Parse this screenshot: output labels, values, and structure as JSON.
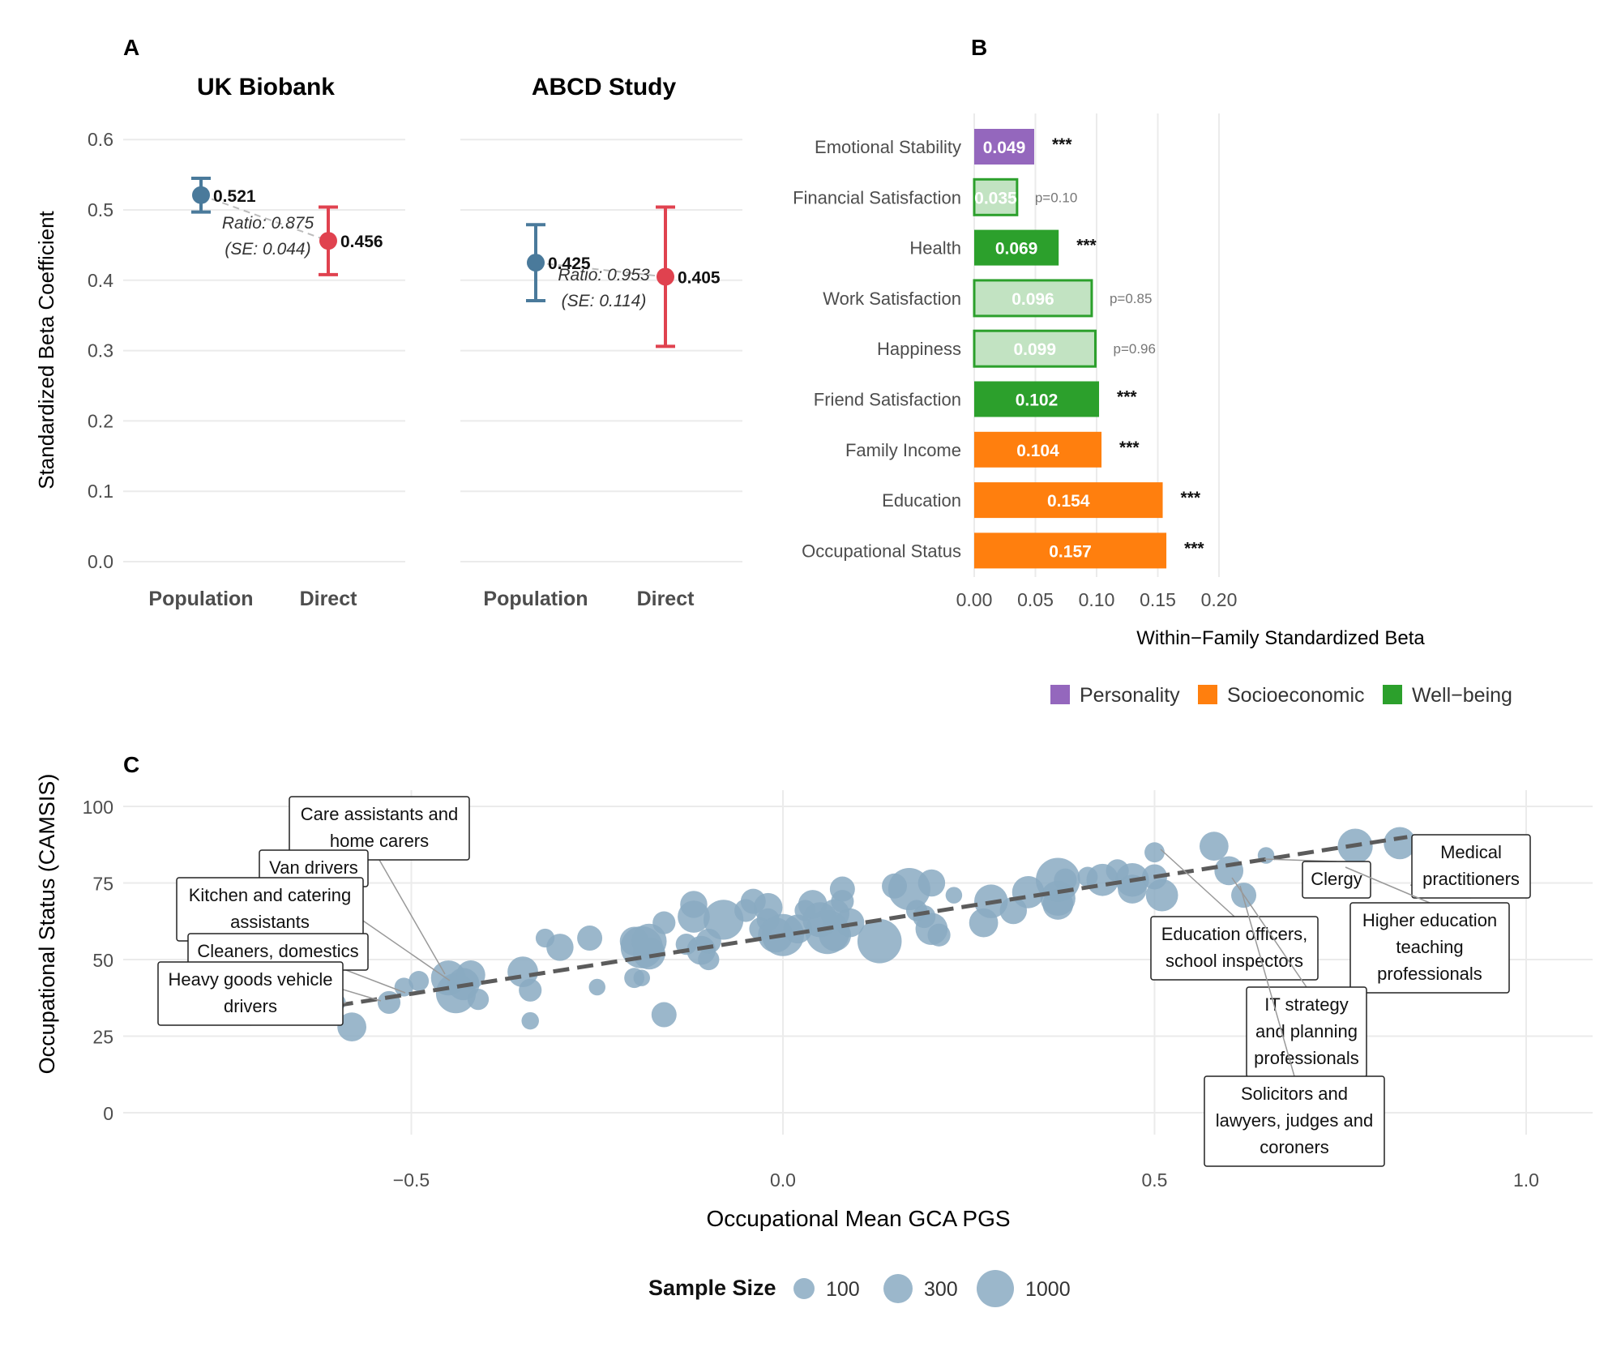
{
  "chart_data": [
    {
      "panel": "A",
      "type": "scatter",
      "ylabel": "Standardized Beta Coefficient",
      "ylim": [
        0,
        0.6
      ],
      "yticks": [
        "0.0",
        "0.1",
        "0.2",
        "0.3",
        "0.4",
        "0.5",
        "0.6"
      ],
      "categories": [
        "Population",
        "Direct"
      ],
      "subplots": [
        {
          "title": "UK Biobank",
          "population": {
            "value": 0.521,
            "ci": [
              0.497,
              0.545
            ],
            "label": "0.521",
            "color": "#4a7a9b"
          },
          "direct": {
            "value": 0.456,
            "ci": [
              0.408,
              0.504
            ],
            "label": "0.456",
            "color": "#e0424f"
          },
          "ratio_text": "Ratio: 0.875",
          "se_text": "(SE: 0.044)"
        },
        {
          "title": "ABCD Study",
          "population": {
            "value": 0.425,
            "ci": [
              0.371,
              0.479
            ],
            "label": "0.425",
            "color": "#4a7a9b"
          },
          "direct": {
            "value": 0.405,
            "ci": [
              0.306,
              0.504
            ],
            "label": "0.405",
            "color": "#e0424f"
          },
          "ratio_text": "Ratio: 0.953",
          "se_text": "(SE: 0.114)"
        }
      ]
    },
    {
      "panel": "B",
      "type": "bar",
      "orientation": "horizontal",
      "xlabel": "Within−Family Standardized Beta",
      "xlim": [
        0,
        0.2
      ],
      "xticks": [
        "0.00",
        "0.05",
        "0.10",
        "0.15",
        "0.20"
      ],
      "bars": [
        {
          "label": "Emotional Stability",
          "value": 0.049,
          "text": "0.049",
          "group": "Personality",
          "significant": true,
          "annotation": "***"
        },
        {
          "label": "Financial Satisfaction",
          "value": 0.035,
          "text": "0.035",
          "group": "Well-being",
          "significant": false,
          "annotation": "p=0.10"
        },
        {
          "label": "Health",
          "value": 0.069,
          "text": "0.069",
          "group": "Well-being",
          "significant": true,
          "annotation": "***"
        },
        {
          "label": "Work Satisfaction",
          "value": 0.096,
          "text": "0.096",
          "group": "Well-being",
          "significant": false,
          "annotation": "p=0.85"
        },
        {
          "label": "Happiness",
          "value": 0.099,
          "text": "0.099",
          "group": "Well-being",
          "significant": false,
          "annotation": "p=0.96"
        },
        {
          "label": "Friend Satisfaction",
          "value": 0.102,
          "text": "0.102",
          "group": "Well-being",
          "significant": true,
          "annotation": "***"
        },
        {
          "label": "Family Income",
          "value": 0.104,
          "text": "0.104",
          "group": "Socioeconomic",
          "significant": true,
          "annotation": "***"
        },
        {
          "label": "Education",
          "value": 0.154,
          "text": "0.154",
          "group": "Socioeconomic",
          "significant": true,
          "annotation": "***"
        },
        {
          "label": "Occupational Status",
          "value": 0.157,
          "text": "0.157",
          "group": "Socioeconomic",
          "significant": true,
          "annotation": "***"
        }
      ],
      "legend": [
        {
          "name": "Personality",
          "color": "#9467bd"
        },
        {
          "name": "Socioeconomic",
          "color": "#ff7f0e"
        },
        {
          "name": "Well−being",
          "color": "#2ca02c"
        }
      ]
    },
    {
      "panel": "C",
      "type": "scatter",
      "xlabel": "Occupational Mean GCA PGS",
      "ylabel": "Occupational Status (CAMSIS)",
      "xlim": [
        -0.9,
        1.1
      ],
      "ylim": [
        -10,
        105
      ],
      "xticks": [
        "−0.5",
        "0.0",
        "0.5",
        "1.0"
      ],
      "yticks": [
        "0",
        "25",
        "50",
        "75",
        "100"
      ],
      "trend_line": {
        "x": [
          -0.6,
          0.84
        ],
        "y": [
          35,
          90
        ]
      },
      "points": [
        {
          "x": -0.58,
          "y": 28,
          "n": 300
        },
        {
          "x": -0.6,
          "y": 36,
          "n": 60
        },
        {
          "x": -0.53,
          "y": 36,
          "n": 150
        },
        {
          "x": -0.51,
          "y": 41,
          "n": 80
        },
        {
          "x": -0.49,
          "y": 43,
          "n": 100
        },
        {
          "x": -0.45,
          "y": 44,
          "n": 500
        },
        {
          "x": -0.44,
          "y": 39,
          "n": 700
        },
        {
          "x": -0.43,
          "y": 42,
          "n": 400
        },
        {
          "x": -0.42,
          "y": 45,
          "n": 300
        },
        {
          "x": -0.41,
          "y": 37,
          "n": 120
        },
        {
          "x": -0.35,
          "y": 46,
          "n": 350
        },
        {
          "x": -0.34,
          "y": 40,
          "n": 150
        },
        {
          "x": -0.34,
          "y": 30,
          "n": 60
        },
        {
          "x": -0.32,
          "y": 57,
          "n": 80
        },
        {
          "x": -0.3,
          "y": 54,
          "n": 250
        },
        {
          "x": -0.26,
          "y": 57,
          "n": 200
        },
        {
          "x": -0.25,
          "y": 41,
          "n": 50
        },
        {
          "x": -0.2,
          "y": 44,
          "n": 100
        },
        {
          "x": -0.19,
          "y": 44,
          "n": 50
        },
        {
          "x": -0.2,
          "y": 56,
          "n": 300
        },
        {
          "x": -0.19,
          "y": 54,
          "n": 800
        },
        {
          "x": -0.18,
          "y": 52,
          "n": 400
        },
        {
          "x": -0.18,
          "y": 56,
          "n": 500
        },
        {
          "x": -0.16,
          "y": 62,
          "n": 150
        },
        {
          "x": -0.16,
          "y": 32,
          "n": 200
        },
        {
          "x": -0.13,
          "y": 55,
          "n": 120
        },
        {
          "x": -0.12,
          "y": 68,
          "n": 250
        },
        {
          "x": -0.12,
          "y": 64,
          "n": 400
        },
        {
          "x": -0.11,
          "y": 53,
          "n": 300
        },
        {
          "x": -0.1,
          "y": 56,
          "n": 200
        },
        {
          "x": -0.1,
          "y": 50,
          "n": 120
        },
        {
          "x": -0.08,
          "y": 63,
          "n": 700
        },
        {
          "x": -0.05,
          "y": 66,
          "n": 150
        },
        {
          "x": -0.04,
          "y": 69,
          "n": 200
        },
        {
          "x": -0.03,
          "y": 60,
          "n": 150
        },
        {
          "x": -0.02,
          "y": 67,
          "n": 300
        },
        {
          "x": -0.02,
          "y": 63,
          "n": 150
        },
        {
          "x": -0.01,
          "y": 58,
          "n": 500
        },
        {
          "x": 0.0,
          "y": 58,
          "n": 800
        },
        {
          "x": 0.02,
          "y": 60,
          "n": 300
        },
        {
          "x": 0.03,
          "y": 66,
          "n": 120
        },
        {
          "x": 0.04,
          "y": 68,
          "n": 300
        },
        {
          "x": 0.05,
          "y": 63,
          "n": 500
        },
        {
          "x": 0.06,
          "y": 59,
          "n": 900
        },
        {
          "x": 0.07,
          "y": 58,
          "n": 400
        },
        {
          "x": 0.07,
          "y": 65,
          "n": 300
        },
        {
          "x": 0.08,
          "y": 73,
          "n": 200
        },
        {
          "x": 0.08,
          "y": 69,
          "n": 150
        },
        {
          "x": 0.09,
          "y": 62,
          "n": 300
        },
        {
          "x": 0.13,
          "y": 56,
          "n": 900
        },
        {
          "x": 0.15,
          "y": 74,
          "n": 200
        },
        {
          "x": 0.17,
          "y": 73,
          "n": 800
        },
        {
          "x": 0.18,
          "y": 66,
          "n": 120
        },
        {
          "x": 0.19,
          "y": 64,
          "n": 150
        },
        {
          "x": 0.2,
          "y": 75,
          "n": 250
        },
        {
          "x": 0.2,
          "y": 60,
          "n": 400
        },
        {
          "x": 0.21,
          "y": 58,
          "n": 150
        },
        {
          "x": 0.23,
          "y": 71,
          "n": 50
        },
        {
          "x": 0.27,
          "y": 62,
          "n": 300
        },
        {
          "x": 0.28,
          "y": 69,
          "n": 450
        },
        {
          "x": 0.31,
          "y": 66,
          "n": 250
        },
        {
          "x": 0.33,
          "y": 72,
          "n": 400
        },
        {
          "x": 0.37,
          "y": 76,
          "n": 900
        },
        {
          "x": 0.37,
          "y": 70,
          "n": 500
        },
        {
          "x": 0.37,
          "y": 68,
          "n": 350
        },
        {
          "x": 0.38,
          "y": 76,
          "n": 150
        },
        {
          "x": 0.41,
          "y": 77,
          "n": 100
        },
        {
          "x": 0.43,
          "y": 76,
          "n": 400
        },
        {
          "x": 0.45,
          "y": 79,
          "n": 150
        },
        {
          "x": 0.47,
          "y": 76,
          "n": 450
        },
        {
          "x": 0.47,
          "y": 73,
          "n": 300
        },
        {
          "x": 0.5,
          "y": 85,
          "n": 100
        },
        {
          "x": 0.5,
          "y": 77,
          "n": 200
        },
        {
          "x": 0.51,
          "y": 71,
          "n": 400
        },
        {
          "x": 0.58,
          "y": 87,
          "n": 300
        },
        {
          "x": 0.6,
          "y": 79,
          "n": 300
        },
        {
          "x": 0.62,
          "y": 71,
          "n": 200
        },
        {
          "x": 0.65,
          "y": 84,
          "n": 50
        },
        {
          "x": 0.77,
          "y": 87,
          "n": 500
        },
        {
          "x": 0.83,
          "y": 88,
          "n": 400
        }
      ],
      "annotations": [
        {
          "text": [
            "Care assistants and",
            "home carers"
          ]
        },
        {
          "text": [
            "Van drivers"
          ]
        },
        {
          "text": [
            "Kitchen and catering",
            "assistants"
          ]
        },
        {
          "text": [
            "Cleaners, domestics"
          ]
        },
        {
          "text": [
            "Heavy goods vehicle",
            "drivers"
          ]
        },
        {
          "text": [
            "Clergy"
          ]
        },
        {
          "text": [
            "Medical",
            "practitioners"
          ]
        },
        {
          "text": [
            "Education officers,",
            "school inspectors"
          ]
        },
        {
          "text": [
            "Higher education",
            "teaching",
            "professionals"
          ]
        },
        {
          "text": [
            "IT strategy",
            "and planning",
            "professionals"
          ]
        },
        {
          "text": [
            "Solicitors and",
            "lawyers, judges and",
            "coroners"
          ]
        }
      ],
      "size_legend": {
        "title": "Sample Size",
        "items": [
          {
            "label": "100",
            "n": 100
          },
          {
            "label": "300",
            "n": 300
          },
          {
            "label": "1000",
            "n": 1000
          }
        ]
      }
    }
  ],
  "panel_labels": {
    "a": "A",
    "b": "B",
    "c": "C"
  },
  "colors": {
    "point": "#8aaac2",
    "grid": "#ebebeb",
    "ci_pop": "#4a7a9b",
    "ci_dir": "#e0424f",
    "trend": "#5b5b5b"
  }
}
